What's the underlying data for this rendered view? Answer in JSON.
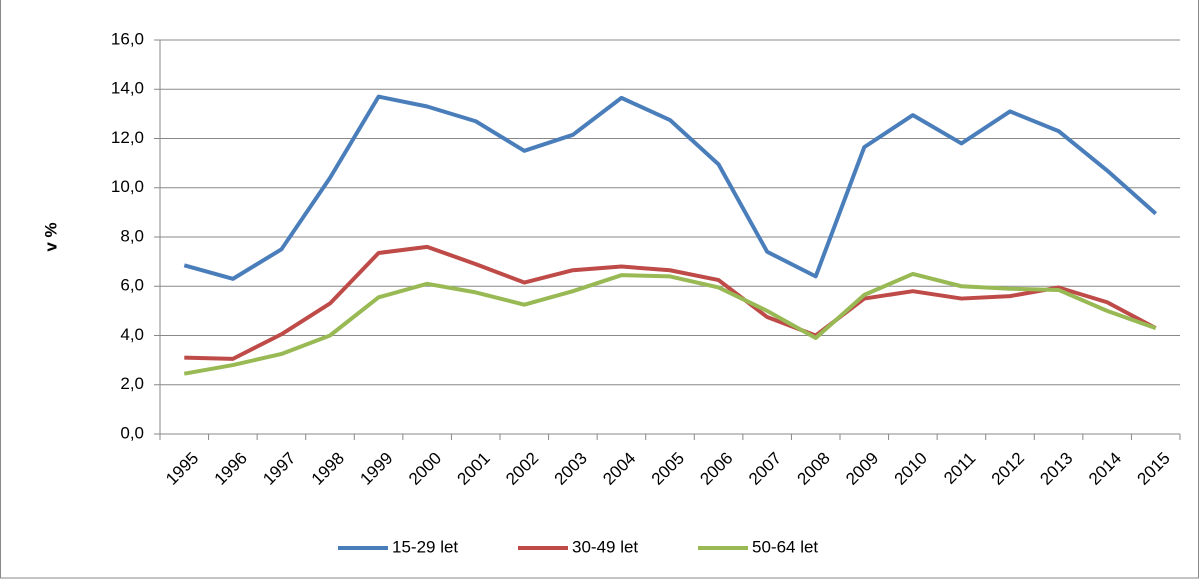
{
  "chart_data": {
    "type": "line",
    "y_label": "v %",
    "categories": [
      "1995",
      "1996",
      "1997",
      "1998",
      "1999",
      "2000",
      "2001",
      "2002",
      "2003",
      "2004",
      "2005",
      "2006",
      "2007",
      "2008",
      "2009",
      "2010",
      "2011",
      "2012",
      "2013",
      "2014",
      "2015"
    ],
    "series": [
      {
        "name": "15-29 let",
        "color": "#4a7ebb",
        "values": [
          6.85,
          6.3,
          7.5,
          10.4,
          13.7,
          13.3,
          12.7,
          11.5,
          12.15,
          13.65,
          12.75,
          10.95,
          7.4,
          6.4,
          11.65,
          12.95,
          11.8,
          13.1,
          12.3,
          10.7,
          8.95
        ]
      },
      {
        "name": "30-49 let",
        "color": "#be4b48",
        "values": [
          3.1,
          3.05,
          4.05,
          5.3,
          7.35,
          7.6,
          6.9,
          6.15,
          6.65,
          6.8,
          6.65,
          6.25,
          4.75,
          4.0,
          5.5,
          5.8,
          5.5,
          5.6,
          5.95,
          5.35,
          4.3
        ]
      },
      {
        "name": "50-64 let",
        "color": "#98b954",
        "values": [
          2.45,
          2.8,
          3.25,
          4.0,
          5.55,
          6.1,
          5.75,
          5.25,
          5.8,
          6.45,
          6.4,
          5.95,
          5.0,
          3.9,
          5.65,
          6.5,
          6.0,
          5.9,
          5.85,
          5.0,
          4.3
        ]
      }
    ],
    "ylim": [
      0,
      16
    ],
    "yticks": [
      {
        "value": 0,
        "label": "0,0"
      },
      {
        "value": 2,
        "label": "2,0"
      },
      {
        "value": 4,
        "label": "4,0"
      },
      {
        "value": 6,
        "label": "6,0"
      },
      {
        "value": 8,
        "label": "8,0"
      },
      {
        "value": 10,
        "label": "10,0"
      },
      {
        "value": 12,
        "label": "12,0"
      },
      {
        "value": 14,
        "label": "14,0"
      },
      {
        "value": 16,
        "label": "16,0"
      }
    ],
    "grid": true,
    "legend": "bottom"
  }
}
